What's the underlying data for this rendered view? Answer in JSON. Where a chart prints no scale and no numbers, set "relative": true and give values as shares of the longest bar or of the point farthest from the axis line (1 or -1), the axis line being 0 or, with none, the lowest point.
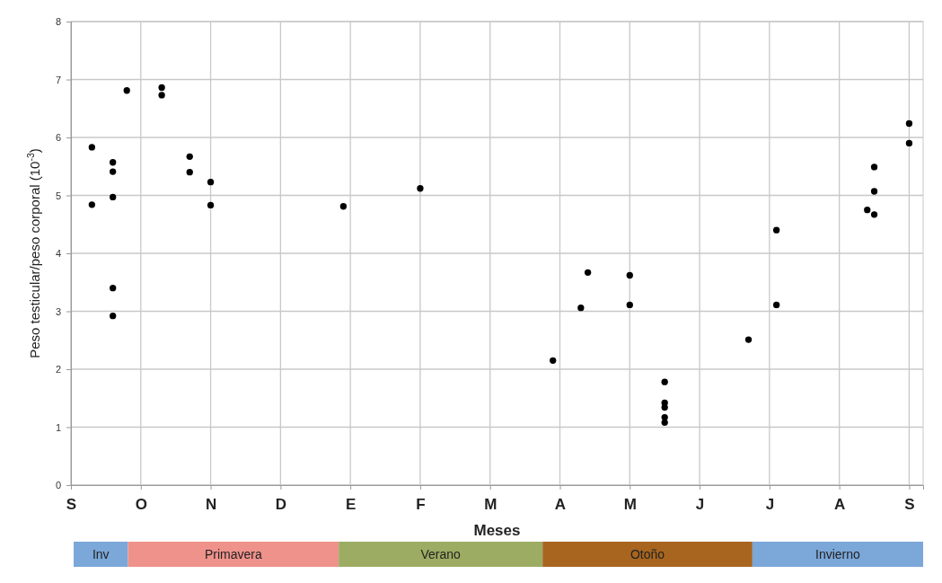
{
  "chart_data": [
    {
      "type": "scatter",
      "xlabel": "Meses",
      "ylabel": "Peso testicular/peso corporal (10$^{-3}$)",
      "categories": [
        "S",
        null,
        null,
        null,
        null,
        null,
        null,
        null,
        null,
        null,
        "O",
        null,
        null,
        null,
        null,
        null,
        null,
        null,
        null,
        null,
        "N",
        null,
        null,
        null,
        null,
        null,
        null,
        null,
        null,
        null,
        "D",
        null,
        null,
        null,
        null,
        null,
        null,
        null,
        null,
        null,
        "E",
        null,
        null,
        null,
        null,
        null,
        null,
        null,
        null,
        null,
        "F",
        null,
        null,
        null,
        null,
        null,
        null,
        null,
        null,
        null,
        "M",
        null,
        null,
        null,
        null,
        null,
        null,
        null,
        null,
        null,
        "A",
        null,
        null,
        null,
        null,
        null,
        null,
        null,
        null,
        null,
        "M",
        null,
        null,
        null,
        null,
        null,
        null,
        null,
        null,
        null,
        "J",
        null,
        null,
        null,
        null,
        null,
        null,
        null,
        null,
        null,
        "J",
        null,
        null,
        null,
        null,
        null,
        null,
        null,
        null,
        null,
        "A",
        null,
        null,
        null,
        null,
        null,
        null,
        null,
        null,
        null,
        "S",
        null,
        null
      ],
      "ylim": [
        0,
        8
      ],
      "yticks": [
        0,
        1,
        2,
        3,
        4,
        5,
        6,
        7,
        8
      ],
      "grid": true,
      "marker": "circle",
      "series": [
        {
          "color": "#000000",
          "values": [
            null,
            null,
            null,
            5.83,
            null,
            null,
            5.57,
            null,
            6.81,
            null,
            null,
            null,
            null,
            6.86,
            null,
            null,
            null,
            5.67,
            null,
            null,
            5.23,
            null,
            null,
            null,
            null,
            null,
            null,
            null,
            null,
            null,
            null,
            null,
            null,
            null,
            null,
            null,
            null,
            null,
            null,
            4.81,
            null,
            null,
            null,
            null,
            null,
            null,
            null,
            null,
            null,
            null,
            5.12,
            null,
            null,
            null,
            null,
            null,
            null,
            null,
            null,
            null,
            null,
            null,
            null,
            null,
            null,
            null,
            null,
            null,
            null,
            2.15,
            null,
            null,
            null,
            3.06,
            3.67,
            null,
            null,
            null,
            null,
            null,
            3.62,
            null,
            null,
            null,
            null,
            1.78,
            null,
            null,
            null,
            null,
            null,
            null,
            null,
            null,
            null,
            null,
            null,
            2.51,
            null,
            null,
            null,
            4.4,
            null,
            null,
            null,
            null,
            null,
            null,
            null,
            null,
            null,
            null,
            null,
            null,
            4.75,
            5.49,
            null,
            null,
            null,
            null,
            6.24,
            null,
            null
          ]
        },
        {
          "color": "#000000",
          "values": [
            null,
            null,
            null,
            4.84,
            null,
            null,
            5.41,
            null,
            null,
            null,
            null,
            null,
            null,
            6.73,
            null,
            null,
            null,
            5.4,
            null,
            null,
            4.83,
            null,
            null,
            null,
            null,
            null,
            null,
            null,
            null,
            null,
            null,
            null,
            null,
            null,
            null,
            null,
            null,
            null,
            null,
            null,
            null,
            null,
            null,
            null,
            null,
            null,
            null,
            null,
            null,
            null,
            null,
            null,
            null,
            null,
            null,
            null,
            null,
            null,
            null,
            null,
            null,
            null,
            null,
            null,
            null,
            null,
            null,
            null,
            null,
            null,
            null,
            null,
            null,
            null,
            null,
            null,
            null,
            null,
            null,
            null,
            3.11,
            null,
            null,
            null,
            null,
            1.42,
            null,
            null,
            null,
            null,
            null,
            null,
            null,
            null,
            null,
            null,
            null,
            null,
            null,
            null,
            null,
            3.11,
            null,
            null,
            null,
            null,
            null,
            null,
            null,
            null,
            null,
            null,
            null,
            null,
            null,
            5.07,
            null,
            null,
            null,
            null,
            5.9,
            null,
            null
          ]
        },
        {
          "color": "#000000",
          "values": [
            null,
            null,
            null,
            null,
            null,
            null,
            4.97,
            null,
            null,
            null,
            null,
            null,
            null,
            null,
            null,
            null,
            null,
            null,
            null,
            null,
            null,
            null,
            null,
            null,
            null,
            null,
            null,
            null,
            null,
            null,
            null,
            null,
            null,
            null,
            null,
            null,
            null,
            null,
            null,
            null,
            null,
            null,
            null,
            null,
            null,
            null,
            null,
            null,
            null,
            null,
            null,
            null,
            null,
            null,
            null,
            null,
            null,
            null,
            null,
            null,
            null,
            null,
            null,
            null,
            null,
            null,
            null,
            null,
            null,
            null,
            null,
            null,
            null,
            null,
            null,
            null,
            null,
            null,
            null,
            null,
            null,
            null,
            null,
            null,
            null,
            1.34,
            null,
            null,
            null,
            null,
            null,
            null,
            null,
            null,
            null,
            null,
            null,
            null,
            null,
            null,
            null,
            null,
            null,
            null,
            null,
            null,
            null,
            null,
            null,
            null,
            null,
            null,
            null,
            null,
            null,
            4.67,
            null,
            null,
            null,
            null,
            null,
            null,
            null
          ]
        },
        {
          "color": "#000000",
          "values": [
            null,
            null,
            null,
            null,
            null,
            null,
            3.4,
            null,
            null,
            null,
            null,
            null,
            null,
            null,
            null,
            null,
            null,
            null,
            null,
            null,
            null,
            null,
            null,
            null,
            null,
            null,
            null,
            null,
            null,
            null,
            null,
            null,
            null,
            null,
            null,
            null,
            null,
            null,
            null,
            null,
            null,
            null,
            null,
            null,
            null,
            null,
            null,
            null,
            null,
            null,
            null,
            null,
            null,
            null,
            null,
            null,
            null,
            null,
            null,
            null,
            null,
            null,
            null,
            null,
            null,
            null,
            null,
            null,
            null,
            null,
            null,
            null,
            null,
            null,
            null,
            null,
            null,
            null,
            null,
            null,
            null,
            null,
            null,
            null,
            null,
            1.17,
            null,
            null,
            null,
            null,
            null,
            null,
            null,
            null,
            null,
            null,
            null,
            null,
            null,
            null,
            null,
            null,
            null,
            null,
            null,
            null,
            null,
            null,
            null,
            null,
            null,
            null,
            null,
            null,
            null,
            null,
            null,
            null,
            null,
            null,
            null,
            null,
            null
          ]
        },
        {
          "color": "#000000",
          "values": [
            null,
            null,
            null,
            null,
            null,
            null,
            2.92,
            null,
            null,
            null,
            null,
            null,
            null,
            null,
            null,
            null,
            null,
            null,
            null,
            null,
            null,
            null,
            null,
            null,
            null,
            null,
            null,
            null,
            null,
            null,
            null,
            null,
            null,
            null,
            null,
            null,
            null,
            null,
            null,
            null,
            null,
            null,
            null,
            null,
            null,
            null,
            null,
            null,
            null,
            null,
            null,
            null,
            null,
            null,
            null,
            null,
            null,
            null,
            null,
            null,
            null,
            null,
            null,
            null,
            null,
            null,
            null,
            null,
            null,
            null,
            null,
            null,
            null,
            null,
            null,
            null,
            null,
            null,
            null,
            null,
            null,
            null,
            null,
            null,
            null,
            1.08,
            null,
            null,
            null,
            null,
            null,
            null,
            null,
            null,
            null,
            null,
            null,
            null,
            null,
            null,
            null,
            null,
            null,
            null,
            null,
            null,
            null,
            null,
            null,
            null,
            null,
            null,
            null,
            null,
            null,
            null,
            null,
            null,
            null,
            null,
            null,
            null,
            null
          ]
        }
      ]
    },
    {
      "type": "bar",
      "orientation": "horizontal",
      "stacked": true,
      "relative": true,
      "categories": [
        null
      ],
      "series": [
        {
          "name": "Inv",
          "color": "#7ba7d9",
          "values": [
            0.064
          ]
        },
        {
          "name": "Primavera",
          "color": "#ef928b",
          "values": [
            0.248
          ]
        },
        {
          "name": "Verano",
          "color": "#9cac63",
          "values": [
            0.24
          ]
        },
        {
          "name": "Otoño",
          "color": "#a8651f",
          "values": [
            0.247
          ]
        },
        {
          "name": "Invierno",
          "color": "#7ba7d9",
          "values": [
            0.201
          ]
        }
      ]
    }
  ]
}
